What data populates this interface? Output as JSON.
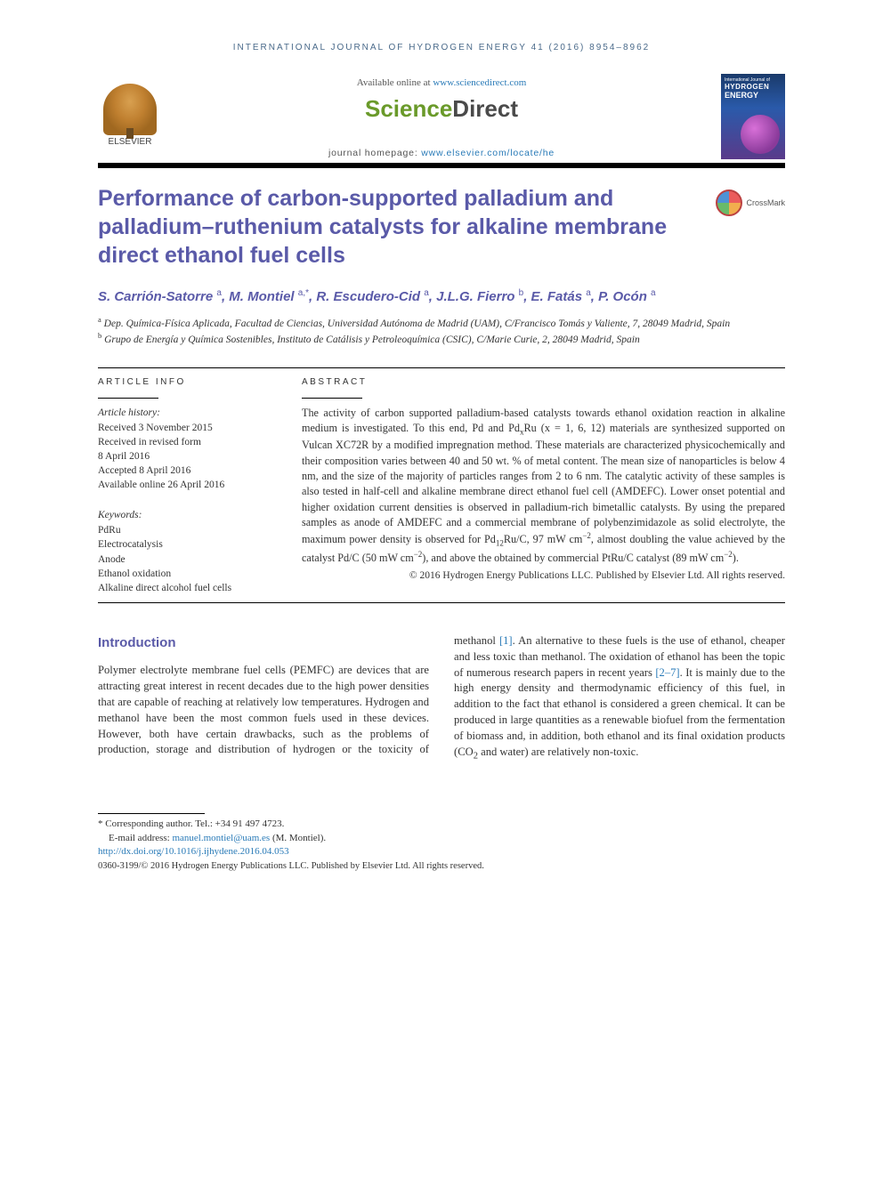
{
  "header": {
    "journal_ref": "INTERNATIONAL JOURNAL OF HYDROGEN ENERGY 41 (2016) 8954–8962",
    "available_prefix": "Available online at ",
    "available_link": "www.sciencedirect.com",
    "sd_logo_part1": "Science",
    "sd_logo_part2": "Direct",
    "homepage_prefix": "journal homepage: ",
    "homepage_link": "www.elsevier.com/locate/he",
    "elsevier_label": "ELSEVIER",
    "cover": {
      "top": "International Journal of",
      "title": "HYDROGEN",
      "sub": "ENERGY"
    },
    "crossmark": "CrossMark"
  },
  "article": {
    "title": "Performance of carbon-supported palladium and palladium–ruthenium catalysts for alkaline membrane direct ethanol fuel cells",
    "authors_html": "S. Carrión-Satorre <sup>a</sup>, M. Montiel <sup>a,</sup><sup class='corr-star'>*</sup>, R. Escudero-Cid <sup>a</sup>, J.L.G. Fierro <sup>b</sup>, E. Fatás <sup>a</sup>, P. Ocón <sup>a</sup>",
    "affiliations": [
      {
        "sup": "a",
        "text": "Dep. Química-Física Aplicada, Facultad de Ciencias, Universidad Autónoma de Madrid (UAM), C/Francisco Tomás y Valiente, 7, 28049 Madrid, Spain"
      },
      {
        "sup": "b",
        "text": "Grupo de Energía y Química Sostenibles, Instituto de Catálisis y Petroleoquímica (CSIC), C/Marie Curie, 2, 28049 Madrid, Spain"
      }
    ]
  },
  "info": {
    "label": "ARTICLE INFO",
    "history_head": "Article history:",
    "history": [
      "Received 3 November 2015",
      "Received in revised form",
      "8 April 2016",
      "Accepted 8 April 2016",
      "Available online 26 April 2016"
    ],
    "keywords_head": "Keywords:",
    "keywords": [
      "PdRu",
      "Electrocatalysis",
      "Anode",
      "Ethanol oxidation",
      "Alkaline direct alcohol fuel cells"
    ]
  },
  "abstract": {
    "label": "ABSTRACT",
    "text": "The activity of carbon supported palladium-based catalysts towards ethanol oxidation reaction in alkaline medium is investigated. To this end, Pd and PdxRu (x = 1, 6, 12) materials are synthesized supported on Vulcan XC72R by a modified impregnation method. These materials are characterized physicochemically and their composition varies between 40 and 50 wt. % of metal content. The mean size of nanoparticles is below 4 nm, and the size of the majority of particles ranges from 2 to 6 nm. The catalytic activity of these samples is also tested in half-cell and alkaline membrane direct ethanol fuel cell (AMDEFC). Lower onset potential and higher oxidation current densities is observed in palladium-rich bimetallic catalysts. By using the prepared samples as anode of AMDEFC and a commercial membrane of polybenzimidazole as solid electrolyte, the maximum power density is observed for Pd12Ru/C, 97 mW cm−2, almost doubling the value achieved by the catalyst Pd/C (50 mW cm−2), and above the obtained by commercial PtRu/C catalyst (89 mW cm−2).",
    "copyright": "© 2016 Hydrogen Energy Publications LLC. Published by Elsevier Ltd. All rights reserved."
  },
  "body": {
    "intro_heading": "Introduction",
    "col1": "Polymer electrolyte membrane fuel cells (PEMFC) are devices that are attracting great interest in recent decades due to the high power densities that are capable of reaching at relatively low temperatures. Hydrogen and methanol have been the most common fuels used in these devices. However, both have certain drawbacks, such as the problems of production, storage and distribution of hydrogen or the toxicity of",
    "col2_pre": "methanol ",
    "ref1": "[1]",
    "col2_mid": ". An alternative to these fuels is the use of ethanol, cheaper and less toxic than methanol. The oxidation of ethanol has been the topic of numerous research papers in recent years ",
    "ref2": "[2–7]",
    "col2_post": ". It is mainly due to the high energy density and thermodynamic efficiency of this fuel, in addition to the fact that ethanol is considered a green chemical. It can be produced in large quantities as a renewable biofuel from the fermentation of biomass and, in addition, both ethanol and its final oxidation products (CO2 and water) are relatively non-toxic."
  },
  "footer": {
    "corr_label": "* Corresponding author. ",
    "corr_tel": "Tel.: +34 91 497 4723.",
    "email_label": "E-mail address: ",
    "email": "manuel.montiel@uam.es",
    "email_suffix": " (M. Montiel).",
    "doi": "http://dx.doi.org/10.1016/j.ijhydene.2016.04.053",
    "issn_line": "0360-3199/© 2016 Hydrogen Energy Publications LLC. Published by Elsevier Ltd. All rights reserved."
  },
  "colors": {
    "heading": "#5a5aa8",
    "link": "#2a7bb8",
    "sd_green": "#6a9a2a",
    "sd_gray": "#4a4a4a"
  }
}
